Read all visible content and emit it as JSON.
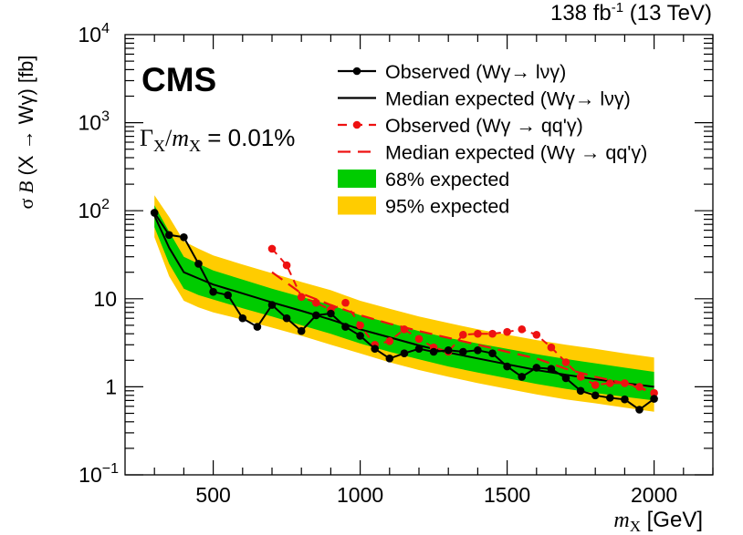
{
  "header": {
    "lumi": "138 fb",
    "lumi_exp": "-1",
    "energy": " (13 TeV)"
  },
  "chart_data": {
    "type": "line",
    "title": "",
    "cms_label": "CMS",
    "annotation": {
      "gamma": "Γ",
      "gamma_sub": "X",
      "slash": "/",
      "m": "m",
      "m_sub": "X",
      "value": " = 0.01%"
    },
    "xlabel": {
      "symbol": "m",
      "sub": "X",
      "unit": " [GeV]"
    },
    "ylabel": {
      "prefix": "σ ",
      "symbol": "B",
      "suffix": "  (X → Wγ) [fb]"
    },
    "xlim": [
      200,
      2200
    ],
    "ylim": [
      0.1,
      10000
    ],
    "yscale": "log",
    "xticks": [
      500,
      1000,
      1500,
      2000
    ],
    "yticks": [
      {
        "value": 0.1,
        "base": "10",
        "exp": "−1"
      },
      {
        "value": 1,
        "base": "1",
        "exp": ""
      },
      {
        "value": 10,
        "base": "10",
        "exp": ""
      },
      {
        "value": 100,
        "base": "10",
        "exp": "2"
      },
      {
        "value": 1000,
        "base": "10",
        "exp": "3"
      },
      {
        "value": 10000,
        "base": "10",
        "exp": "4"
      }
    ],
    "legend": {
      "placement": "top-right",
      "entries": [
        {
          "key": "obs_lvg",
          "label": "Observed (Wγ→ lνγ)"
        },
        {
          "key": "exp_lvg",
          "label": "Median expected (Wγ→ lνγ)"
        },
        {
          "key": "obs_qqg",
          "label": "Observed (Wγ → qq'γ)"
        },
        {
          "key": "exp_qqg",
          "label": "Median expected (Wγ → qq'γ)"
        },
        {
          "key": "band68",
          "label": "68% expected"
        },
        {
          "key": "band95",
          "label": "95% expected"
        }
      ]
    },
    "colors": {
      "band68": "#00cc00",
      "band95": "#ffcc00",
      "lvg": "#000000",
      "qqg": "#ee1111"
    },
    "bands": {
      "x": [
        300,
        350,
        400,
        450,
        500,
        600,
        700,
        800,
        900,
        1000,
        1100,
        1200,
        1300,
        1400,
        1500,
        1600,
        1700,
        1800,
        1900,
        2000
      ],
      "lo95": [
        50,
        18,
        9.5,
        8,
        7,
        5.8,
        4.7,
        3.8,
        3.0,
        2.4,
        1.9,
        1.55,
        1.3,
        1.1,
        0.95,
        0.82,
        0.72,
        0.65,
        0.58,
        0.52
      ],
      "lo68": [
        65,
        25,
        13,
        11,
        9.8,
        7.8,
        6.3,
        5.0,
        4.0,
        3.1,
        2.5,
        2.05,
        1.7,
        1.45,
        1.25,
        1.08,
        0.95,
        0.85,
        0.77,
        0.7
      ],
      "hi68": [
        115,
        58,
        30,
        25,
        21,
        16.5,
        13.0,
        10.5,
        8.5,
        6.5,
        5.3,
        4.3,
        3.6,
        3.1,
        2.7,
        2.35,
        2.07,
        1.85,
        1.65,
        1.48
      ],
      "hi95": [
        150,
        85,
        45,
        37,
        31,
        24.5,
        19.5,
        15.5,
        12.5,
        9.5,
        7.7,
        6.3,
        5.3,
        4.5,
        3.9,
        3.4,
        3.0,
        2.7,
        2.4,
        2.15
      ]
    },
    "series": [
      {
        "name": "Median expected (Wγ→ lνγ)",
        "key": "exp_lvg",
        "x": [
          300,
          350,
          400,
          450,
          500,
          600,
          700,
          800,
          900,
          1000,
          1100,
          1200,
          1300,
          1400,
          1500,
          1600,
          1700,
          1800,
          1900,
          2000
        ],
        "values": [
          88,
          38,
          20,
          17,
          14.5,
          11.5,
          9.1,
          7.3,
          5.8,
          4.5,
          3.65,
          2.95,
          2.45,
          2.1,
          1.8,
          1.55,
          1.37,
          1.22,
          1.1,
          1.0
        ]
      },
      {
        "name": "Observed (Wγ→ lνγ)",
        "key": "obs_lvg",
        "x": [
          300,
          350,
          400,
          450,
          500,
          550,
          600,
          650,
          700,
          750,
          800,
          850,
          900,
          950,
          1000,
          1050,
          1100,
          1150,
          1200,
          1250,
          1300,
          1350,
          1400,
          1450,
          1500,
          1550,
          1600,
          1650,
          1700,
          1750,
          1800,
          1850,
          1900,
          1950,
          2000
        ],
        "values": [
          95,
          53,
          50,
          25,
          12,
          11,
          6.0,
          4.8,
          8.5,
          6.0,
          4.3,
          6.5,
          6.8,
          4.8,
          3.8,
          2.7,
          2.1,
          2.4,
          2.7,
          2.5,
          2.6,
          2.5,
          2.6,
          2.4,
          1.7,
          1.3,
          1.65,
          1.6,
          1.25,
          0.9,
          0.8,
          0.75,
          0.72,
          0.55,
          0.73
        ]
      },
      {
        "name": "Median expected (Wγ → qq'γ)",
        "key": "exp_qqg",
        "x": [
          700,
          800,
          900,
          1000,
          1100,
          1200,
          1300,
          1400,
          1500,
          1600,
          1700,
          1800,
          1900,
          2000
        ],
        "values": [
          20,
          11.5,
          8.5,
          6.5,
          5.2,
          4.3,
          3.6,
          3.0,
          2.5,
          2.1,
          1.6,
          1.3,
          1.1,
          0.85
        ]
      },
      {
        "name": "Observed (Wγ → qq'γ)",
        "key": "obs_qqg",
        "x": [
          700,
          750,
          800,
          850,
          900,
          950,
          1000,
          1050,
          1100,
          1150,
          1200,
          1250,
          1300,
          1350,
          1400,
          1450,
          1500,
          1550,
          1600,
          1650,
          1700,
          1750,
          1800,
          1850,
          1900,
          1950,
          2000
        ],
        "values": [
          37,
          24,
          10.5,
          9.0,
          7.5,
          9.0,
          5.0,
          3.0,
          3.3,
          4.5,
          3.5,
          2.8,
          2.5,
          3.9,
          4.0,
          4.0,
          4.2,
          4.5,
          3.9,
          2.8,
          1.9,
          1.3,
          1.05,
          1.1,
          1.1,
          1.0,
          0.85
        ]
      }
    ]
  }
}
